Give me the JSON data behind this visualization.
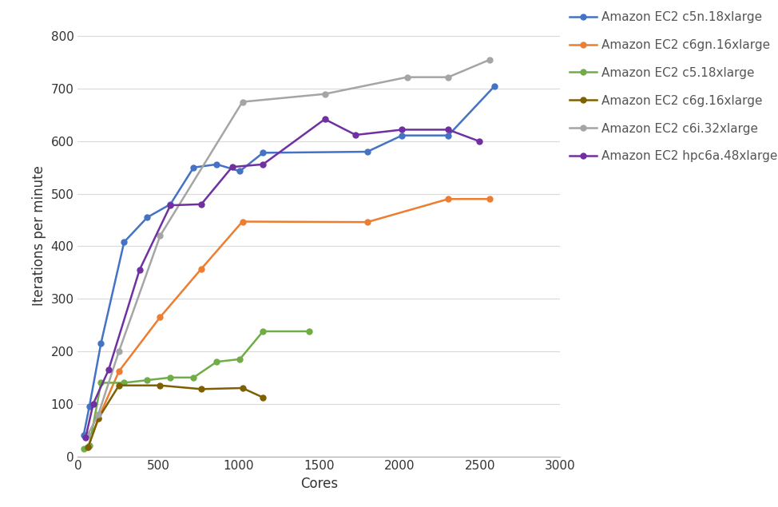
{
  "series": [
    {
      "label": "Amazon EC2 c5n.18xlarge",
      "color": "#4472C4",
      "x": [
        36,
        72,
        144,
        288,
        432,
        576,
        720,
        864,
        1008,
        1152,
        1800,
        2016,
        2304,
        2592
      ],
      "y": [
        40,
        95,
        215,
        408,
        455,
        480,
        550,
        556,
        543,
        578,
        580,
        611,
        611,
        705
      ]
    },
    {
      "label": "Amazon EC2 c6gn.16xlarge",
      "color": "#ED7D31",
      "x": [
        64,
        128,
        256,
        512,
        768,
        1024,
        1800,
        2304,
        2560
      ],
      "y": [
        18,
        72,
        162,
        265,
        357,
        447,
        446,
        490,
        490
      ]
    },
    {
      "label": "Amazon EC2 c5.18xlarge",
      "color": "#70AD47",
      "x": [
        36,
        72,
        144,
        288,
        432,
        576,
        720,
        864,
        1008,
        1152,
        1440
      ],
      "y": [
        15,
        20,
        140,
        140,
        145,
        150,
        150,
        180,
        185,
        238,
        238
      ]
    },
    {
      "label": "Amazon EC2 c6g.16xlarge",
      "color": "#7F6000",
      "x": [
        64,
        128,
        256,
        512,
        768,
        1024,
        1152
      ],
      "y": [
        17,
        72,
        135,
        135,
        128,
        130,
        112
      ]
    },
    {
      "label": "Amazon EC2 c6i.32xlarge",
      "color": "#A5A5A5",
      "x": [
        64,
        128,
        256,
        512,
        1024,
        1536,
        2048,
        2304,
        2560
      ],
      "y": [
        42,
        80,
        200,
        420,
        675,
        690,
        722,
        722,
        755
      ]
    },
    {
      "label": "Amazon EC2 hpc6a.48xlarge",
      "color": "#7030A0",
      "x": [
        48,
        96,
        192,
        384,
        576,
        768,
        960,
        1152,
        1536,
        1728,
        2016,
        2304,
        2496
      ],
      "y": [
        35,
        100,
        165,
        355,
        478,
        480,
        551,
        556,
        642,
        612,
        622,
        622,
        600
      ]
    }
  ],
  "xlabel": "Cores",
  "ylabel": "Iterations per minute",
  "xlim": [
    0,
    3000
  ],
  "ylim": [
    0,
    840
  ],
  "yticks": [
    0,
    100,
    200,
    300,
    400,
    500,
    600,
    700,
    800
  ],
  "xticks": [
    0,
    500,
    1000,
    1500,
    2000,
    2500,
    3000
  ],
  "grid_color": "#D9D9D9",
  "plot_bg_color": "#FFFFFF",
  "fig_bg_color": "#FFFFFF",
  "legend_fontsize": 11,
  "axis_label_fontsize": 12,
  "tick_fontsize": 11
}
